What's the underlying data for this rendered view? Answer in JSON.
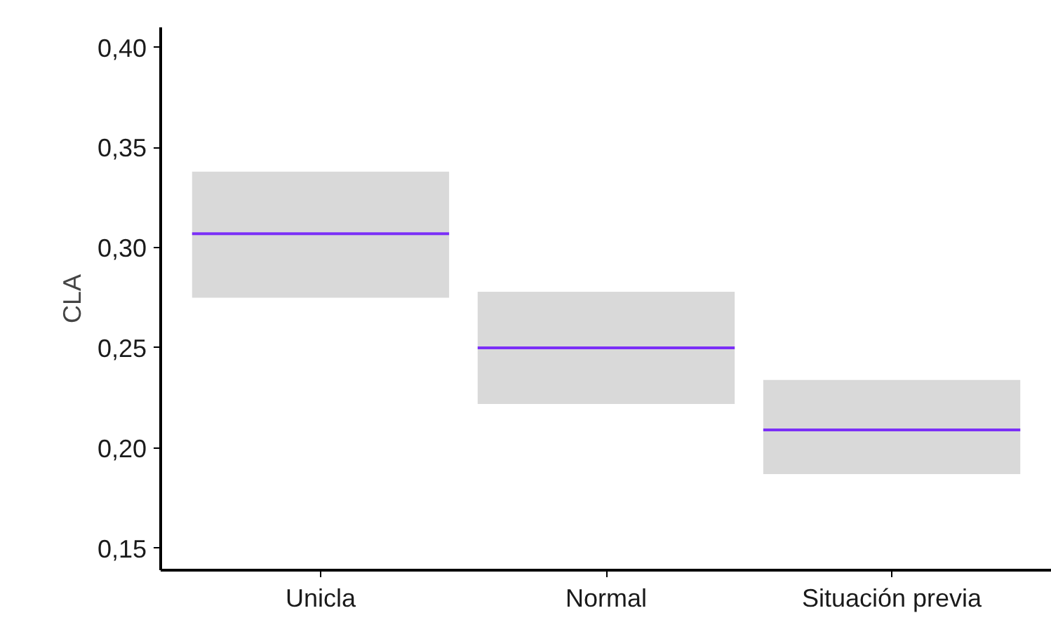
{
  "chart_data": {
    "type": "box",
    "ylabel": "CLA",
    "categories": [
      "Unicla",
      "Normal",
      "Situación previa"
    ],
    "boxes": [
      {
        "low": 0.275,
        "q1": 0.275,
        "median": 0.307,
        "q3": 0.338,
        "high": 0.338
      },
      {
        "low": 0.222,
        "q1": 0.222,
        "median": 0.25,
        "q3": 0.278,
        "high": 0.278
      },
      {
        "low": 0.187,
        "q1": 0.187,
        "median": 0.209,
        "q3": 0.234,
        "high": 0.234
      }
    ],
    "color": "#d9d9d9",
    "ylim": [
      0.139,
      0.41
    ],
    "yticks": [
      {
        "value": 0.15,
        "label": "0,15"
      },
      {
        "value": 0.2,
        "label": "0,20"
      },
      {
        "value": 0.25,
        "label": "0,25"
      },
      {
        "value": 0.3,
        "label": "0,30"
      },
      {
        "value": 0.35,
        "label": "0,35"
      },
      {
        "value": 0.4,
        "label": "0,40"
      }
    ],
    "grid": false
  }
}
